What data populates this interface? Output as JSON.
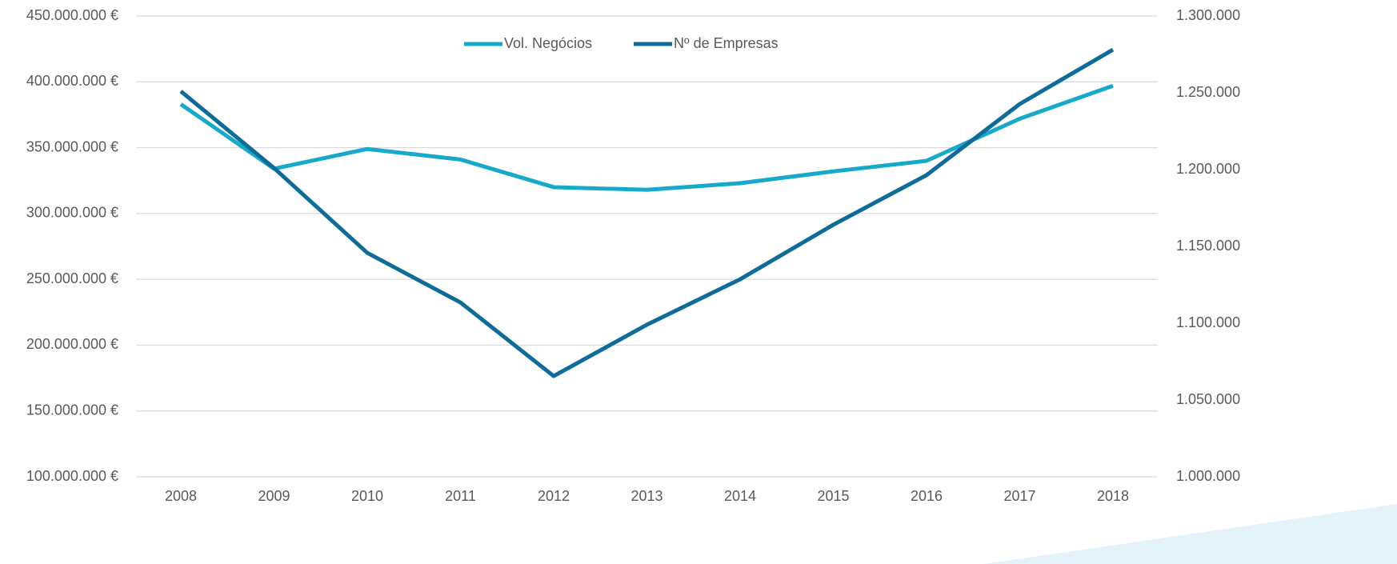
{
  "chart_data": {
    "type": "line",
    "categories": [
      "2008",
      "2009",
      "2010",
      "2011",
      "2012",
      "2013",
      "2014",
      "2015",
      "2016",
      "2017",
      "2018"
    ],
    "series": [
      {
        "name": "Vol. Negócios",
        "color": "#16a9c9",
        "values": [
          383000000,
          334000000,
          349000000,
          341000000,
          320000000,
          318000000,
          323000000,
          332000000,
          340000000,
          372000000,
          397000000
        ]
      },
      {
        "name": "Nº de Empresas",
        "color": "#0f6b98",
        "axis": "y2",
        "values": [
          1251000,
          1201000,
          1145800,
          1113500,
          1065600,
          1099000,
          1128600,
          1164100,
          1196400,
          1242700,
          1278100
        ]
      }
    ],
    "ylim": [
      100000000,
      450000000
    ],
    "yticks": [
      {
        "value": 100000000,
        "label": "100.000.000 €"
      },
      {
        "value": 150000000,
        "label": "150.000.000 €"
      },
      {
        "value": 200000000,
        "label": "200.000.000 €"
      },
      {
        "value": 250000000,
        "label": "250.000.000 €"
      },
      {
        "value": 300000000,
        "label": "300.000.000 €"
      },
      {
        "value": 350000000,
        "label": "350.000.000 €"
      },
      {
        "value": 400000000,
        "label": "400.000.000 €"
      },
      {
        "value": 450000000,
        "label": "450.000.000 €"
      }
    ],
    "y2lim": [
      1000000,
      1300000
    ],
    "y2ticks": [
      {
        "value": 1000000,
        "label": "1.000.000"
      },
      {
        "value": 1050000,
        "label": "1.050.000"
      },
      {
        "value": 1100000,
        "label": "1.100.000"
      },
      {
        "value": 1150000,
        "label": "1.150.000"
      },
      {
        "value": 1200000,
        "label": "1.200.000"
      },
      {
        "value": 1250000,
        "label": "1.250.000"
      },
      {
        "value": 1300000,
        "label": "1.300.000"
      }
    ],
    "grid": true,
    "legend": "top"
  }
}
